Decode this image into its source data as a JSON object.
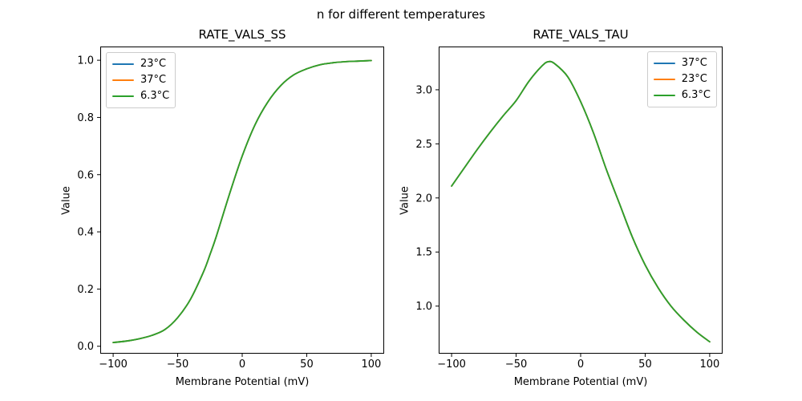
{
  "figure": {
    "suptitle": "n for different temperatures",
    "background_color": "#ffffff",
    "spine_color": "#000000"
  },
  "chart_data": [
    {
      "type": "line",
      "title": "RATE_VALS_SS",
      "xlabel": "Membrane Potential (mV)",
      "ylabel": "Value",
      "xlim": [
        -110,
        110
      ],
      "ylim": [
        -0.026,
        1.048
      ],
      "grid": false,
      "xticks": [
        -100,
        -50,
        0,
        50,
        100
      ],
      "xtick_labels": [
        "−100",
        "−50",
        "0",
        "50",
        "100"
      ],
      "yticks": [
        0.0,
        0.2,
        0.4,
        0.6,
        0.8,
        1.0
      ],
      "ytick_labels": [
        "0.0",
        "0.2",
        "0.4",
        "0.6",
        "0.8",
        "1.0"
      ],
      "legend": {
        "position": "upper left",
        "entries": [
          {
            "label": "23°C",
            "color": "#1f77b4"
          },
          {
            "label": "37°C",
            "color": "#ff7f0e"
          },
          {
            "label": "6.3°C",
            "color": "#2ca02c"
          }
        ]
      },
      "x": [
        -100,
        -90,
        -80,
        -70,
        -60,
        -50,
        -40,
        -30,
        -25,
        -20,
        -10,
        0,
        10,
        20,
        30,
        40,
        50,
        60,
        70,
        80,
        90,
        100
      ],
      "series": [
        {
          "name": "23°C",
          "color": "#1f77b4",
          "values": [
            0.013,
            0.018,
            0.026,
            0.038,
            0.058,
            0.1,
            0.165,
            0.26,
            0.32,
            0.385,
            0.53,
            0.665,
            0.775,
            0.855,
            0.912,
            0.949,
            0.97,
            0.984,
            0.991,
            0.995,
            0.997,
            0.999
          ]
        },
        {
          "name": "37°C",
          "color": "#ff7f0e",
          "values": [
            0.013,
            0.018,
            0.026,
            0.038,
            0.058,
            0.1,
            0.165,
            0.26,
            0.32,
            0.385,
            0.53,
            0.665,
            0.775,
            0.855,
            0.912,
            0.949,
            0.97,
            0.984,
            0.991,
            0.995,
            0.997,
            0.999
          ]
        },
        {
          "name": "6.3°C",
          "color": "#2ca02c",
          "values": [
            0.013,
            0.018,
            0.026,
            0.038,
            0.058,
            0.1,
            0.165,
            0.26,
            0.32,
            0.385,
            0.53,
            0.665,
            0.775,
            0.855,
            0.912,
            0.949,
            0.97,
            0.984,
            0.991,
            0.995,
            0.997,
            0.999
          ]
        }
      ]
    },
    {
      "type": "line",
      "title": "RATE_VALS_TAU",
      "xlabel": "Membrane Potential (mV)",
      "ylabel": "Value",
      "xlim": [
        -110,
        110
      ],
      "ylim": [
        0.56,
        3.4
      ],
      "grid": false,
      "xticks": [
        -100,
        -50,
        0,
        50,
        100
      ],
      "xtick_labels": [
        "−100",
        "−50",
        "0",
        "50",
        "100"
      ],
      "yticks": [
        1.0,
        1.5,
        2.0,
        2.5,
        3.0
      ],
      "ytick_labels": [
        "1.0",
        "1.5",
        "2.0",
        "2.5",
        "3.0"
      ],
      "legend": {
        "position": "upper right",
        "entries": [
          {
            "label": "37°C",
            "color": "#1f77b4"
          },
          {
            "label": "23°C",
            "color": "#ff7f0e"
          },
          {
            "label": "6.3°C",
            "color": "#2ca02c"
          }
        ]
      },
      "x": [
        -100,
        -90,
        -80,
        -70,
        -60,
        -50,
        -40,
        -30,
        -25,
        -20,
        -10,
        0,
        10,
        20,
        30,
        40,
        50,
        60,
        70,
        80,
        90,
        100
      ],
      "series": [
        {
          "name": "37°C",
          "color": "#1f77b4",
          "values": [
            2.11,
            2.28,
            2.45,
            2.61,
            2.76,
            2.9,
            3.08,
            3.22,
            3.26,
            3.24,
            3.12,
            2.89,
            2.6,
            2.26,
            1.95,
            1.64,
            1.38,
            1.17,
            1.0,
            0.87,
            0.76,
            0.67
          ]
        },
        {
          "name": "23°C",
          "color": "#ff7f0e",
          "values": [
            2.11,
            2.28,
            2.45,
            2.61,
            2.76,
            2.9,
            3.08,
            3.22,
            3.26,
            3.24,
            3.12,
            2.89,
            2.6,
            2.26,
            1.95,
            1.64,
            1.38,
            1.17,
            1.0,
            0.87,
            0.76,
            0.67
          ]
        },
        {
          "name": "6.3°C",
          "color": "#2ca02c",
          "values": [
            2.11,
            2.28,
            2.45,
            2.61,
            2.76,
            2.9,
            3.08,
            3.22,
            3.26,
            3.24,
            3.12,
            2.89,
            2.6,
            2.26,
            1.95,
            1.64,
            1.38,
            1.17,
            1.0,
            0.87,
            0.76,
            0.67
          ]
        }
      ]
    }
  ]
}
